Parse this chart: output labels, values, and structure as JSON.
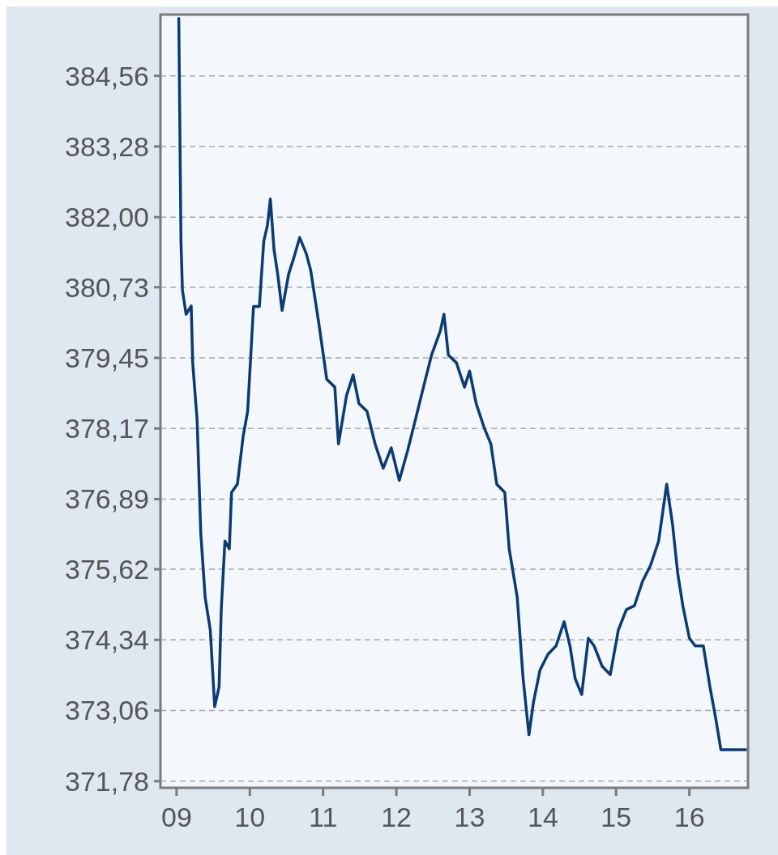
{
  "chart_data": {
    "type": "line",
    "x": [
      9.03,
      9.06,
      9.08,
      9.13,
      9.2,
      9.22,
      9.28,
      9.33,
      9.39,
      9.46,
      9.52,
      9.58,
      9.61,
      9.66,
      9.72,
      9.75,
      9.83,
      9.91,
      9.97,
      10.05,
      10.13,
      10.19,
      10.24,
      10.28,
      10.33,
      10.38,
      10.44,
      10.53,
      10.6,
      10.68,
      10.77,
      10.83,
      10.94,
      11.05,
      11.16,
      11.21,
      11.32,
      11.41,
      11.49,
      11.6,
      11.71,
      11.82,
      11.93,
      12.04,
      12.15,
      12.26,
      12.37,
      12.48,
      12.6,
      12.65,
      12.71,
      12.82,
      12.93,
      13.0,
      13.09,
      13.2,
      13.29,
      13.37,
      13.48,
      13.54,
      13.65,
      13.73,
      13.81,
      13.87,
      13.96,
      14.07,
      14.18,
      14.29,
      14.37,
      14.44,
      14.53,
      14.62,
      14.7,
      14.81,
      14.92,
      15.03,
      15.14,
      15.25,
      15.36,
      15.47,
      15.58,
      15.69,
      15.77,
      15.84,
      15.91,
      16.0,
      16.08,
      16.19,
      16.28,
      16.36,
      16.43,
      16.58,
      16.77
    ],
    "series": [
      {
        "color": "#0b3a74",
        "values": [
          385.6,
          381.56,
          380.68,
          380.24,
          380.39,
          379.36,
          378.33,
          376.28,
          375.11,
          374.52,
          373.13,
          373.49,
          374.89,
          376.13,
          375.99,
          377.01,
          377.16,
          378.04,
          378.48,
          380.38,
          380.38,
          381.56,
          381.85,
          382.33,
          381.41,
          380.97,
          380.31,
          380.97,
          381.26,
          381.63,
          381.34,
          381.04,
          380.09,
          379.06,
          378.92,
          377.89,
          378.77,
          379.14,
          378.62,
          378.48,
          377.89,
          377.45,
          377.82,
          377.23,
          377.75,
          378.33,
          378.92,
          379.5,
          379.94,
          380.24,
          379.5,
          379.36,
          378.92,
          379.21,
          378.62,
          378.18,
          377.89,
          377.16,
          377.01,
          375.99,
          375.11,
          373.64,
          372.62,
          373.2,
          373.79,
          374.08,
          374.23,
          374.67,
          374.23,
          373.64,
          373.35,
          374.37,
          374.23,
          373.86,
          373.71,
          374.52,
          374.89,
          374.96,
          375.4,
          375.69,
          376.13,
          377.16,
          376.43,
          375.55,
          374.96,
          374.37,
          374.23,
          374.23,
          373.49,
          372.91,
          372.35,
          372.35,
          372.35
        ]
      }
    ],
    "xlim": [
      8.78,
      16.8
    ],
    "xticks": [
      {
        "value": 9,
        "label": "09"
      },
      {
        "value": 10,
        "label": "10"
      },
      {
        "value": 11,
        "label": "11"
      },
      {
        "value": 12,
        "label": "12"
      },
      {
        "value": 13,
        "label": "13"
      },
      {
        "value": 14,
        "label": "14"
      },
      {
        "value": 15,
        "label": "15"
      },
      {
        "value": 16,
        "label": "16"
      }
    ],
    "ylim": [
      371.66,
      385.67
    ],
    "yticks": [
      {
        "value": 371.78,
        "label": "371,78"
      },
      {
        "value": 373.06,
        "label": "373,06"
      },
      {
        "value": 374.34,
        "label": "374,34"
      },
      {
        "value": 375.62,
        "label": "375,62"
      },
      {
        "value": 376.89,
        "label": "376,89"
      },
      {
        "value": 378.17,
        "label": "378,17"
      },
      {
        "value": 379.45,
        "label": "379,45"
      },
      {
        "value": 380.73,
        "label": "380,73"
      },
      {
        "value": 382.0,
        "label": "382,00"
      },
      {
        "value": 383.28,
        "label": "383,28"
      },
      {
        "value": 384.56,
        "label": "384,56"
      }
    ],
    "grid": "y",
    "line_style": "solid"
  }
}
